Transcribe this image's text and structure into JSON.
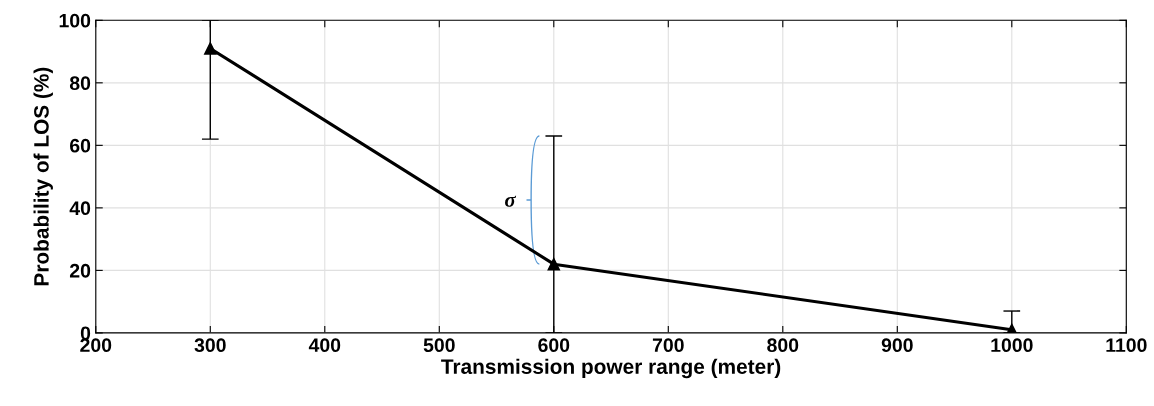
{
  "chart_data": {
    "type": "line",
    "xlabel": "Transmission power range (meter)",
    "ylabel": "Probability of LOS (%)",
    "x": [
      300,
      600,
      1000
    ],
    "series": [
      {
        "color": "#000000",
        "values": [
          91,
          22,
          1
        ],
        "errors": [
          [
            62,
            100
          ],
          [
            0,
            63
          ],
          [
            0,
            7
          ]
        ]
      }
    ],
    "xlim": [
      200,
      1100
    ],
    "xticks": [
      200,
      300,
      400,
      500,
      600,
      700,
      800,
      900,
      1000,
      1100
    ],
    "ylim": [
      0,
      100
    ],
    "yticks": [
      0,
      20,
      40,
      60,
      80,
      100
    ],
    "annotations": [
      {
        "text": "σ",
        "x": 600,
        "y": 42
      }
    ],
    "grid": true,
    "marker": "triangle",
    "line_style": "solid"
  }
}
